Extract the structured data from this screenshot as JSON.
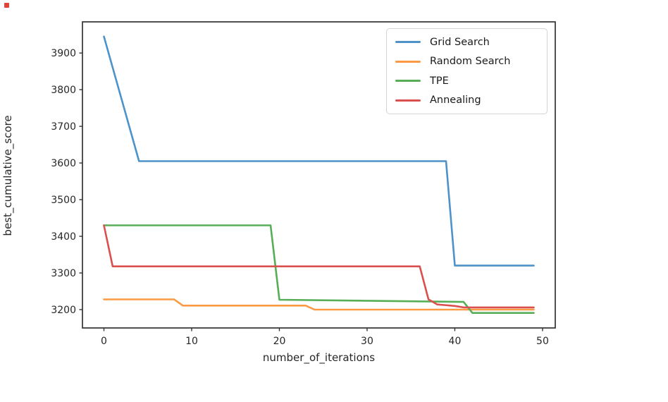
{
  "chart_data": {
    "type": "line",
    "title": "",
    "xlabel": "number_of_iterations",
    "ylabel": "best_cumulative_score",
    "xlim": [
      -2.45,
      51.45
    ],
    "ylim": [
      3150,
      3985
    ],
    "x_ticks": [
      0,
      10,
      20,
      30,
      40,
      50
    ],
    "y_ticks": [
      3200,
      3300,
      3400,
      3500,
      3600,
      3700,
      3800,
      3900
    ],
    "grid": false,
    "legend_position": "upper right",
    "axis_color": "#333333",
    "text_color": "#262626",
    "line_width": 2.6,
    "series": [
      {
        "name": "Grid Search",
        "color": "#4D92C8",
        "points": [
          [
            0,
            3945
          ],
          [
            4,
            3605
          ],
          [
            39,
            3605
          ],
          [
            40,
            3320
          ],
          [
            49,
            3320
          ]
        ]
      },
      {
        "name": "Random Search",
        "color": "#FC9A43",
        "points": [
          [
            0,
            3228
          ],
          [
            8,
            3228
          ],
          [
            9,
            3211
          ],
          [
            23,
            3211
          ],
          [
            24,
            3200
          ],
          [
            49,
            3200
          ]
        ]
      },
      {
        "name": "TPE",
        "color": "#57AE57",
        "points": [
          [
            0,
            3430
          ],
          [
            19,
            3430
          ],
          [
            20,
            3227
          ],
          [
            41,
            3221
          ],
          [
            42,
            3191
          ],
          [
            49,
            3191
          ]
        ]
      },
      {
        "name": "Annealing",
        "color": "#D9504F",
        "points": [
          [
            0,
            3430
          ],
          [
            1,
            3318
          ],
          [
            36,
            3318
          ],
          [
            37,
            3228
          ],
          [
            38,
            3214
          ],
          [
            40,
            3210
          ],
          [
            41,
            3206
          ],
          [
            49,
            3206
          ]
        ]
      }
    ]
  }
}
